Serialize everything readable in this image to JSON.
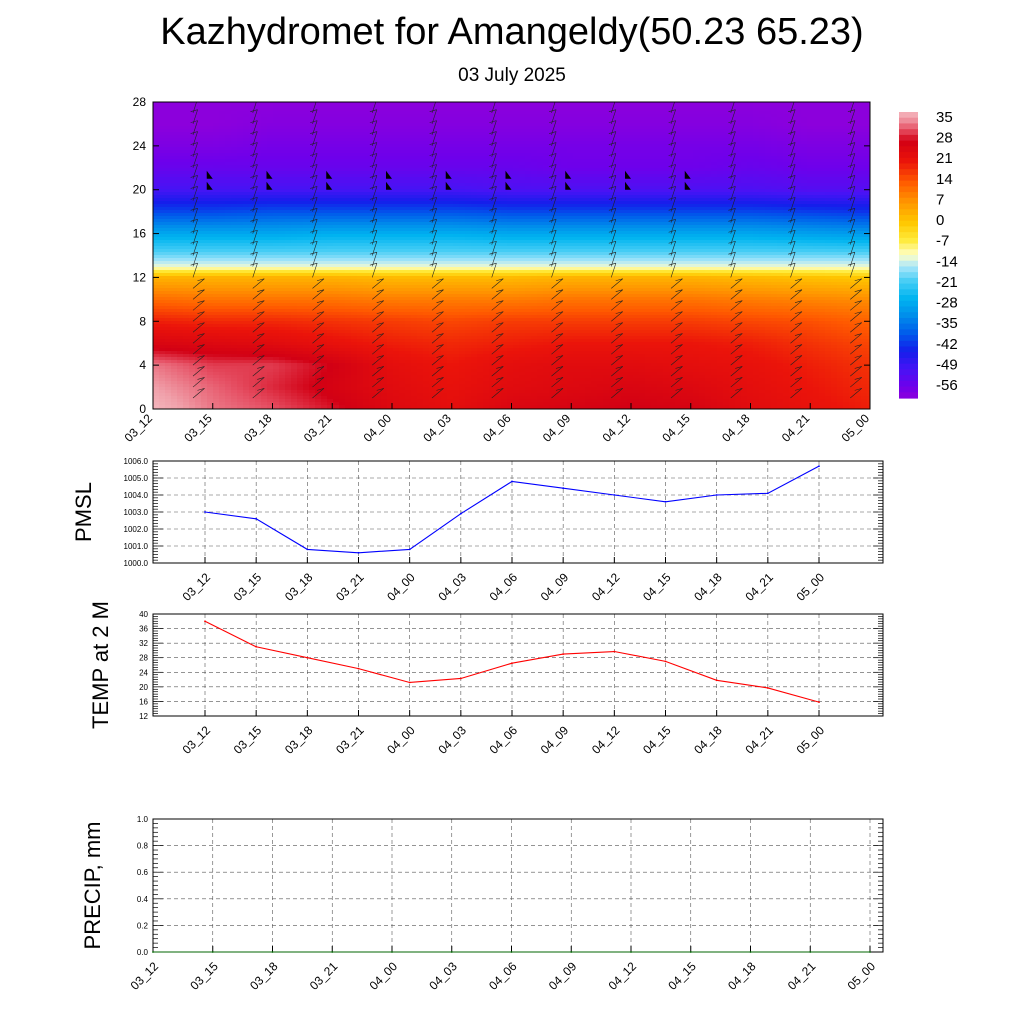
{
  "header": {
    "title": "Kazhydromet for Amangeldy(50.23 65.23)",
    "subtitle": "03 July 2025"
  },
  "chart_data": [
    {
      "type": "heatmap",
      "title": "",
      "xlabel": "",
      "ylabel": "",
      "x": [
        "03_12",
        "03_15",
        "03_18",
        "03_21",
        "04_00",
        "04_03",
        "04_06",
        "04_09",
        "04_12",
        "04_15",
        "04_18",
        "04_21",
        "05_00"
      ],
      "y_ticks": [
        0,
        4,
        8,
        12,
        16,
        20,
        24,
        28
      ],
      "ylim": [
        0,
        28
      ],
      "colorbar": {
        "labels": [
          "35",
          "28",
          "21",
          "14",
          "7",
          "0",
          "-7",
          "-14",
          "-21",
          "-28",
          "-35",
          "-42",
          "-49",
          "-56"
        ],
        "range": [
          -60,
          38
        ]
      },
      "levels": [
        0,
        2,
        4,
        6,
        8,
        10,
        12,
        13,
        14,
        16,
        18,
        20,
        22,
        24,
        26,
        28
      ],
      "temperature": [
        [
          38,
          34,
          32,
          29,
          25,
          23,
          26,
          27,
          28,
          27,
          24,
          22,
          20
        ],
        [
          36,
          33,
          30,
          27,
          24,
          22,
          24,
          25,
          26,
          25,
          23,
          21,
          19
        ],
        [
          34,
          31,
          31,
          28,
          23,
          21,
          23,
          24,
          24,
          23,
          22,
          20,
          18
        ],
        [
          26,
          25,
          24,
          22,
          20,
          19,
          20,
          21,
          21,
          21,
          20,
          18,
          16
        ],
        [
          20,
          19,
          19,
          18,
          17,
          16,
          17,
          17,
          17,
          17,
          16,
          15,
          13
        ],
        [
          12,
          11,
          11,
          11,
          10,
          10,
          10,
          11,
          11,
          11,
          10,
          9,
          8
        ],
        [
          3,
          3,
          3,
          3,
          2,
          2,
          2,
          3,
          3,
          3,
          2,
          1,
          0
        ],
        [
          -12,
          -12,
          -12,
          -12,
          -12,
          -12,
          -12,
          -12,
          -12,
          -12,
          -12,
          -12,
          -12
        ],
        [
          -18,
          -18,
          -18,
          -18,
          -18,
          -18,
          -18,
          -18,
          -18,
          -18,
          -18,
          -18,
          -18
        ],
        [
          -28,
          -28,
          -28,
          -27,
          -27,
          -27,
          -28,
          -28,
          -28,
          -28,
          -28,
          -29,
          -30
        ],
        [
          -40,
          -40,
          -39,
          -39,
          -39,
          -39,
          -40,
          -40,
          -40,
          -40,
          -40,
          -41,
          -42
        ],
        [
          -50,
          -50,
          -50,
          -50,
          -50,
          -50,
          -51,
          -51,
          -51,
          -51,
          -51,
          -52,
          -52
        ],
        [
          -55,
          -55,
          -55,
          -55,
          -55,
          -55,
          -55,
          -56,
          -56,
          -56,
          -55,
          -56,
          -56
        ],
        [
          -58,
          -58,
          -57,
          -57,
          -57,
          -57,
          -57,
          -57,
          -57,
          -57,
          -57,
          -58,
          -58
        ],
        [
          -60,
          -60,
          -59,
          -59,
          -59,
          -59,
          -59,
          -59,
          -59,
          -59,
          -59,
          -60,
          -60
        ],
        [
          -60,
          -60,
          -60,
          -60,
          -60,
          -60,
          -60,
          -60,
          -60,
          -60,
          -60,
          -60,
          -60
        ]
      ],
      "wind_barbs": true,
      "grid": false
    },
    {
      "type": "line",
      "title": "",
      "ylabel": "PMSL",
      "x": [
        "03_12",
        "03_15",
        "03_18",
        "03_21",
        "04_00",
        "04_03",
        "04_06",
        "04_09",
        "04_12",
        "04_15",
        "04_18",
        "04_21",
        "05_00"
      ],
      "y_ticks": [
        "1000.0",
        "1001.0",
        "1002.0",
        "1003.0",
        "1004.0",
        "1005.0",
        "1006.0"
      ],
      "ylim": [
        1000,
        1006
      ],
      "series": [
        {
          "values": [
            1003.0,
            1002.6,
            1000.8,
            1000.6,
            1000.8,
            1002.9,
            1004.8,
            1004.4,
            1004.0,
            1003.6,
            1004.0,
            1004.1,
            1005.7
          ],
          "color": "#0000ff"
        }
      ],
      "grid": true
    },
    {
      "type": "line",
      "title": "",
      "ylabel": "TEMP at 2 M",
      "x": [
        "03_12",
        "03_15",
        "03_18",
        "03_21",
        "04_00",
        "04_03",
        "04_06",
        "04_09",
        "04_12",
        "04_15",
        "04_18",
        "04_21",
        "05_00"
      ],
      "y_ticks": [
        "12",
        "16",
        "20",
        "24",
        "28",
        "32",
        "36",
        "40"
      ],
      "ylim": [
        12,
        40
      ],
      "series": [
        {
          "values": [
            38,
            31,
            28,
            25,
            21.2,
            22.3,
            26.5,
            29,
            29.7,
            27,
            21.8,
            19.7,
            15.8
          ],
          "color": "#ff0000"
        }
      ],
      "grid": true
    },
    {
      "type": "line",
      "title": "",
      "ylabel": "PRECIP, mm",
      "x": [
        "03_12",
        "03_15",
        "03_18",
        "03_21",
        "04_00",
        "04_03",
        "04_06",
        "04_09",
        "04_12",
        "04_15",
        "04_18",
        "04_21",
        "05_00"
      ],
      "y_ticks": [
        "0.0",
        "0.2",
        "0.4",
        "0.6",
        "0.8",
        "1.0"
      ],
      "ylim": [
        0,
        1
      ],
      "series": [
        {
          "values": [
            0,
            0,
            0,
            0,
            0,
            0,
            0,
            0,
            0,
            0,
            0,
            0,
            0
          ],
          "color": "#006400"
        }
      ],
      "grid": true
    }
  ]
}
